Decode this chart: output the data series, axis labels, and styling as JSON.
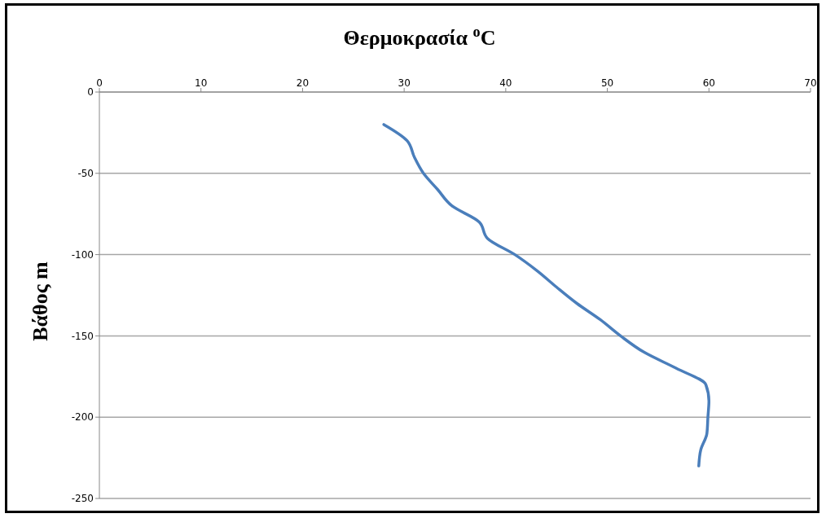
{
  "chart_data": {
    "type": "line",
    "title": "Θερμοκρασία $^{o}$C",
    "ylabel": "Βάθος m",
    "x": [
      28,
      30.3,
      31,
      31.9,
      33.3,
      34.7,
      37.4,
      38.2,
      40.9,
      43.1,
      45,
      47,
      49.3,
      51.3,
      53.6,
      56.8,
      59.7,
      60,
      59.9,
      59.8,
      59.2,
      59
    ],
    "series": [
      {
        "color": "#4a7ebb",
        "values": [
          -20,
          -30,
          -40,
          -50,
          -60,
          -70,
          -80,
          -90,
          -100,
          -110,
          -120,
          -130,
          -140,
          -150,
          -160,
          -170,
          -180,
          -190,
          -200,
          -210,
          -220,
          -230
        ]
      }
    ],
    "xlim": [
      0,
      70
    ],
    "xticks": [
      0,
      10,
      20,
      30,
      40,
      50,
      60,
      70
    ],
    "ylim": [
      -250,
      0
    ],
    "yticks": [
      0,
      -50,
      -100,
      -150,
      -200,
      -250
    ],
    "grid": "y",
    "legend": false,
    "marker": "none",
    "line_style": "solid"
  }
}
